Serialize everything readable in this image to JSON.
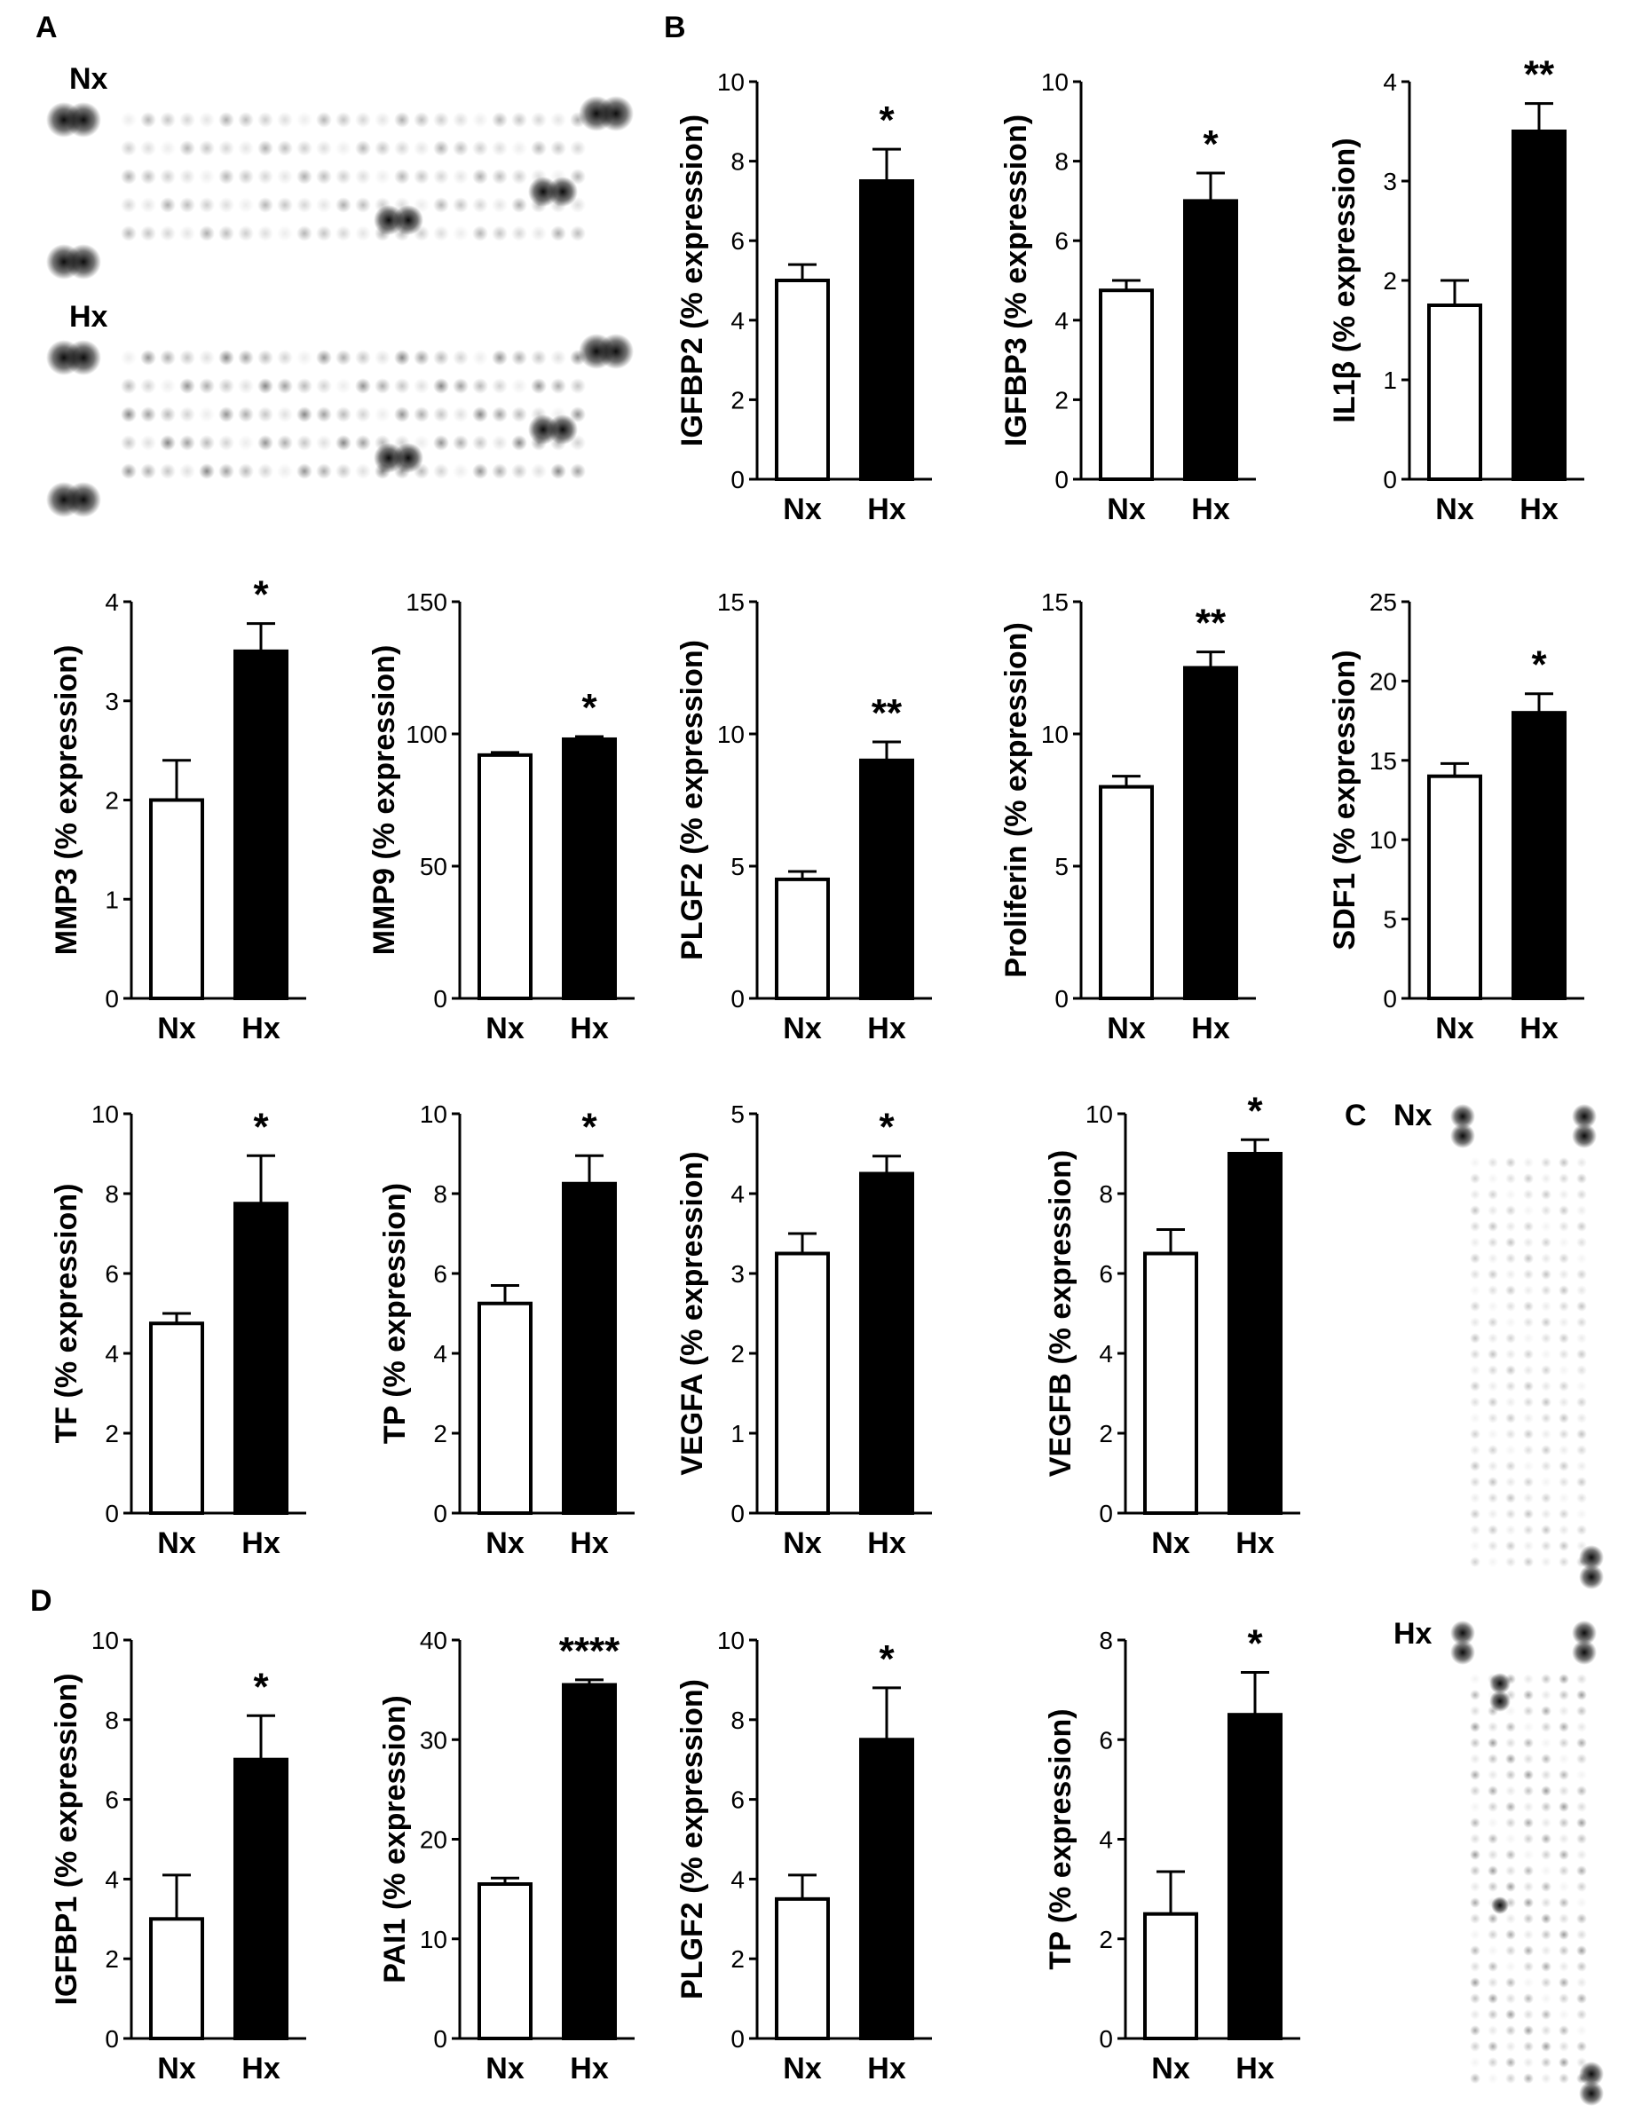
{
  "panel_labels": {
    "a": "A",
    "b": "B",
    "c": "C",
    "d": "D"
  },
  "blot_labels": {
    "nx": "Nx",
    "hx": "Hx"
  },
  "categories": [
    "Nx",
    "Hx"
  ],
  "colors": {
    "nx_fill": "#ffffff",
    "hx_fill": "#000000",
    "stroke": "#000000"
  },
  "chart_data": [
    {
      "id": "b-igfbp2",
      "type": "bar",
      "panel": "B",
      "ylabel": "IGFBP2 (% expression)",
      "categories": [
        "Nx",
        "Hx"
      ],
      "values": [
        5.0,
        7.5
      ],
      "errors": [
        0.4,
        0.8
      ],
      "ylim": [
        0,
        10
      ],
      "yticks": [
        "0",
        "2",
        "4",
        "6",
        "8",
        "10"
      ],
      "significance": "*"
    },
    {
      "id": "b-igfbp3",
      "type": "bar",
      "panel": "B",
      "ylabel": "IGFBP3 (% expression)",
      "categories": [
        "Nx",
        "Hx"
      ],
      "values": [
        4.75,
        7.0
      ],
      "errors": [
        0.25,
        0.7
      ],
      "ylim": [
        0,
        10
      ],
      "yticks": [
        "0",
        "2",
        "4",
        "6",
        "8",
        "10"
      ],
      "significance": "*"
    },
    {
      "id": "b-il1b",
      "type": "bar",
      "panel": "B",
      "ylabel": "IL1β (% expression)",
      "categories": [
        "Nx",
        "Hx"
      ],
      "values": [
        1.75,
        3.5
      ],
      "errors": [
        0.25,
        0.28
      ],
      "ylim": [
        0,
        4
      ],
      "yticks": [
        "0",
        "1",
        "2",
        "3",
        "4"
      ],
      "significance": "**"
    },
    {
      "id": "b-mmp3",
      "type": "bar",
      "panel": "B",
      "ylabel": "MMP3 (% expression)",
      "categories": [
        "Nx",
        "Hx"
      ],
      "values": [
        2.0,
        3.5
      ],
      "errors": [
        0.4,
        0.28
      ],
      "ylim": [
        0,
        4
      ],
      "yticks": [
        "0",
        "1",
        "2",
        "3",
        "4"
      ],
      "significance": "*"
    },
    {
      "id": "b-mmp9",
      "type": "bar",
      "panel": "B",
      "ylabel": "MMP9 (% expression)",
      "categories": [
        "Nx",
        "Hx"
      ],
      "values": [
        92,
        98
      ],
      "errors": [
        1,
        1
      ],
      "ylim": [
        0,
        150
      ],
      "yticks": [
        "0",
        "50",
        "100",
        "150"
      ],
      "significance": "*"
    },
    {
      "id": "b-plgf2",
      "type": "bar",
      "panel": "B",
      "ylabel": "PLGF2 (% expression)",
      "categories": [
        "Nx",
        "Hx"
      ],
      "values": [
        4.5,
        9.0
      ],
      "errors": [
        0.3,
        0.7
      ],
      "ylim": [
        0,
        15
      ],
      "yticks": [
        "0",
        "5",
        "10",
        "15"
      ],
      "significance": "**"
    },
    {
      "id": "b-proliferin",
      "type": "bar",
      "panel": "B",
      "ylabel": "Proliferin (% expression)",
      "categories": [
        "Nx",
        "Hx"
      ],
      "values": [
        8.0,
        12.5
      ],
      "errors": [
        0.4,
        0.6
      ],
      "ylim": [
        0,
        15
      ],
      "yticks": [
        "0",
        "5",
        "10",
        "15"
      ],
      "significance": "**"
    },
    {
      "id": "b-sdf1",
      "type": "bar",
      "panel": "B",
      "ylabel": "SDF1 (% expression)",
      "categories": [
        "Nx",
        "Hx"
      ],
      "values": [
        14.0,
        18.0
      ],
      "errors": [
        0.8,
        1.2
      ],
      "ylim": [
        0,
        25
      ],
      "yticks": [
        "0",
        "5",
        "10",
        "15",
        "20",
        "25"
      ],
      "significance": "*"
    },
    {
      "id": "b-tf",
      "type": "bar",
      "panel": "B",
      "ylabel": "TF (% expression)",
      "categories": [
        "Nx",
        "Hx"
      ],
      "values": [
        4.75,
        7.75
      ],
      "errors": [
        0.25,
        1.2
      ],
      "ylim": [
        0,
        10
      ],
      "yticks": [
        "0",
        "2",
        "4",
        "6",
        "8",
        "10"
      ],
      "significance": "*"
    },
    {
      "id": "b-tp",
      "type": "bar",
      "panel": "B",
      "ylabel": "TP (% expression)",
      "categories": [
        "Nx",
        "Hx"
      ],
      "values": [
        5.25,
        8.25
      ],
      "errors": [
        0.45,
        0.7
      ],
      "ylim": [
        0,
        10
      ],
      "yticks": [
        "0",
        "2",
        "4",
        "6",
        "8",
        "10"
      ],
      "significance": "*"
    },
    {
      "id": "b-vegfa",
      "type": "bar",
      "panel": "B",
      "ylabel": "VEGFA (% expression)",
      "categories": [
        "Nx",
        "Hx"
      ],
      "values": [
        3.25,
        4.25
      ],
      "errors": [
        0.25,
        0.22
      ],
      "ylim": [
        0,
        5
      ],
      "yticks": [
        "0",
        "1",
        "2",
        "3",
        "4",
        "5"
      ],
      "significance": "*"
    },
    {
      "id": "b-vegfb",
      "type": "bar",
      "panel": "B",
      "ylabel": "VEGFB (% expression)",
      "categories": [
        "Nx",
        "Hx"
      ],
      "values": [
        6.5,
        9.0
      ],
      "errors": [
        0.6,
        0.35
      ],
      "ylim": [
        0,
        10
      ],
      "yticks": [
        "0",
        "2",
        "4",
        "6",
        "8",
        "10"
      ],
      "significance": "*"
    },
    {
      "id": "d-igfbp1",
      "type": "bar",
      "panel": "D",
      "ylabel": "IGFBP1 (% expression)",
      "categories": [
        "Nx",
        "Hx"
      ],
      "values": [
        3.0,
        7.0
      ],
      "errors": [
        1.1,
        1.1
      ],
      "ylim": [
        0,
        10
      ],
      "yticks": [
        "0",
        "2",
        "4",
        "6",
        "8",
        "10"
      ],
      "significance": "*"
    },
    {
      "id": "d-pai1",
      "type": "bar",
      "panel": "D",
      "ylabel": "PAI1 (% expression)",
      "categories": [
        "Nx",
        "Hx"
      ],
      "values": [
        15.5,
        35.5
      ],
      "errors": [
        0.6,
        0.5
      ],
      "ylim": [
        0,
        40
      ],
      "yticks": [
        "0",
        "10",
        "20",
        "30",
        "40"
      ],
      "significance": "****"
    },
    {
      "id": "d-plgf2",
      "type": "bar",
      "panel": "D",
      "ylabel": "PLGF2 (% expression)",
      "categories": [
        "Nx",
        "Hx"
      ],
      "values": [
        3.5,
        7.5
      ],
      "errors": [
        0.6,
        1.3
      ],
      "ylim": [
        0,
        10
      ],
      "yticks": [
        "0",
        "2",
        "4",
        "6",
        "8",
        "10"
      ],
      "significance": "*"
    },
    {
      "id": "d-tp",
      "type": "bar",
      "panel": "D",
      "ylabel": "TP (% expression)",
      "categories": [
        "Nx",
        "Hx"
      ],
      "values": [
        2.5,
        6.5
      ],
      "errors": [
        0.85,
        0.85
      ],
      "ylim": [
        0,
        8
      ],
      "yticks": [
        "0",
        "2",
        "4",
        "6",
        "8"
      ],
      "significance": "*"
    }
  ]
}
